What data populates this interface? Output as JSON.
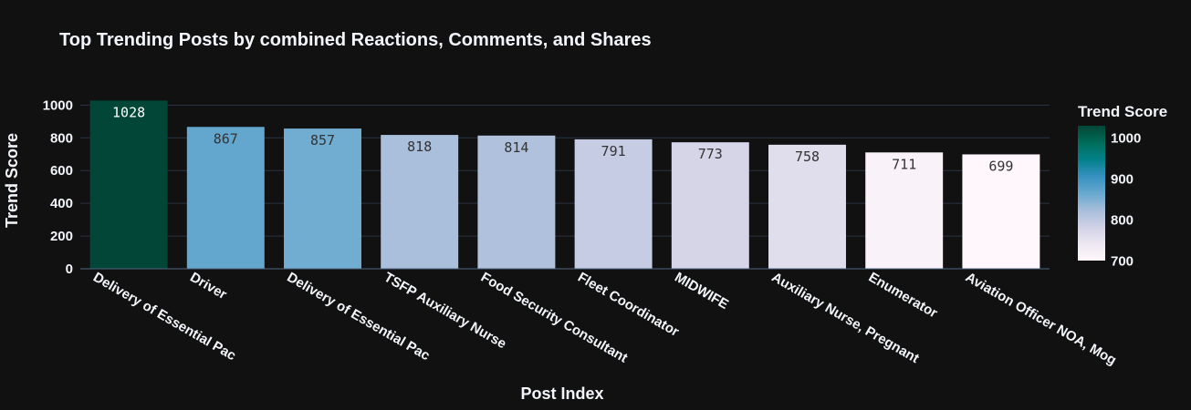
{
  "chart_data": {
    "type": "bar",
    "title": "Top Trending Posts by combined Reactions, Comments, and Shares",
    "xlabel": "Post Index",
    "ylabel": "Trend Score",
    "categories": [
      "Delivery of Essential Pac",
      "Driver",
      "Delivery of Essential Pac",
      "TSFP Auxiliary Nurse",
      "Food Security Consultant",
      "Fleet Coordinator",
      "MIDWIFE",
      "Auxiliary Nurse, Pregnant",
      "Enumerator",
      "Aviation Officer NOA, Mog"
    ],
    "values": [
      1028,
      867,
      857,
      818,
      814,
      791,
      773,
      758,
      711,
      699
    ],
    "ylim": [
      0,
      1030
    ],
    "yticks": [
      0,
      200,
      400,
      600,
      800,
      1000
    ],
    "grid": true,
    "colorbar": {
      "title": "Trend Score",
      "range": [
        699,
        1028
      ],
      "ticks": [
        700,
        800,
        900,
        1000
      ],
      "colorscale": [
        "#fff7fb",
        "#ece7f2",
        "#d0d1e6",
        "#a6bddb",
        "#67a9cf",
        "#3690c0",
        "#02818a",
        "#016c59",
        "#014636"
      ]
    }
  }
}
